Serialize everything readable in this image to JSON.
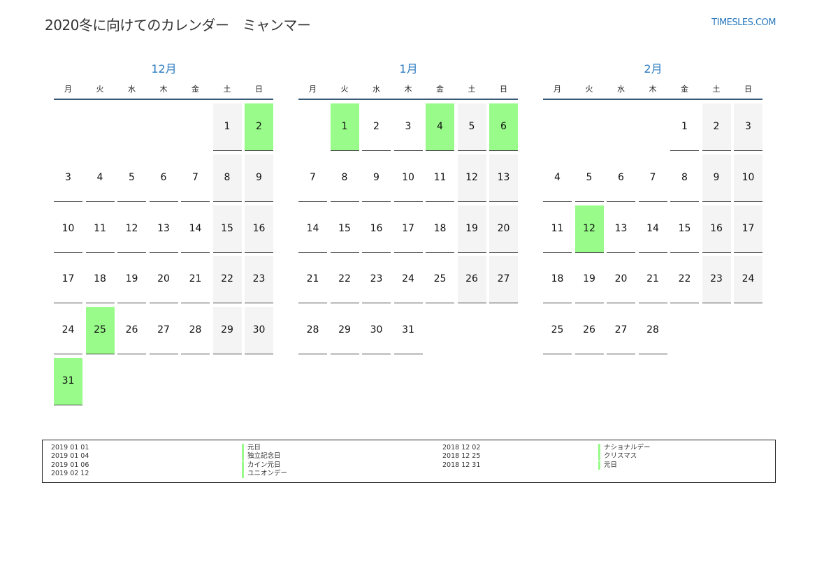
{
  "header": {
    "title": "2020冬に向けてのカレンダー　ミャンマー",
    "brand": "TIMESLES.COM"
  },
  "weekdays": [
    "月",
    "火",
    "水",
    "木",
    "金",
    "土",
    "日"
  ],
  "colors": {
    "holiday": "#99fb8a",
    "weekend": "#f4f4f4",
    "accent": "#2a7abf"
  },
  "months": [
    {
      "name": "12月",
      "start_col": 5,
      "days": 31,
      "holidays": [
        2,
        25,
        31
      ]
    },
    {
      "name": "1月",
      "start_col": 1,
      "days": 31,
      "holidays": [
        1,
        4,
        6
      ]
    },
    {
      "name": "2月",
      "start_col": 4,
      "days": 28,
      "holidays": [
        12
      ]
    }
  ],
  "legend": {
    "left": [
      {
        "date": "2019 01 01",
        "name": "元日"
      },
      {
        "date": "2019 01 04",
        "name": "独立記念日"
      },
      {
        "date": "2019 01 06",
        "name": "カイン元日"
      },
      {
        "date": "2019 02 12",
        "name": "ユニオンデー"
      }
    ],
    "right": [
      {
        "date": "2018 12 02",
        "name": "ナショナルデー"
      },
      {
        "date": "2018 12 25",
        "name": "クリスマス"
      },
      {
        "date": "2018 12 31",
        "name": "元日"
      }
    ]
  }
}
